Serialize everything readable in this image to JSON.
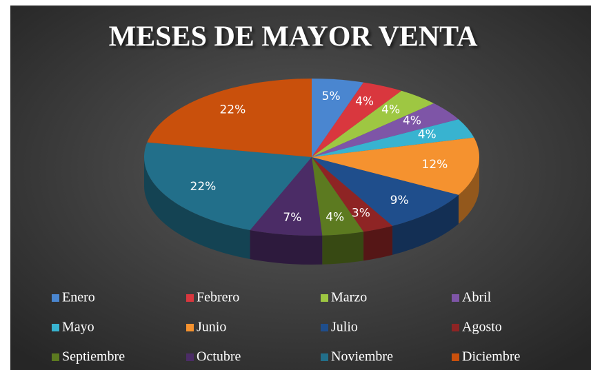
{
  "chart_data": {
    "type": "pie",
    "title": "MESES DE MAYOR VENTA",
    "categories": [
      "Enero",
      "Febrero",
      "Marzo",
      "Abril",
      "Mayo",
      "Junio",
      "Julio",
      "Agosto",
      "Septiembre",
      "Octubre",
      "Noviembre",
      "Diciembre"
    ],
    "values": [
      5,
      4,
      4,
      4,
      4,
      12,
      9,
      3,
      4,
      7,
      22,
      22
    ],
    "value_labels": [
      "5%",
      "4%",
      "4%",
      "4%",
      "4%",
      "12%",
      "9%",
      "3%",
      "4%",
      "7%",
      "22%",
      "22%"
    ],
    "colors": [
      "#4a86d0",
      "#d9373e",
      "#9ec742",
      "#7e55a7",
      "#38b3d0",
      "#f5922f",
      "#1f4e8c",
      "#8e2424",
      "#5c7a20",
      "#4b2c66",
      "#226f8a",
      "#c9500c"
    ],
    "legend": "bottom"
  }
}
